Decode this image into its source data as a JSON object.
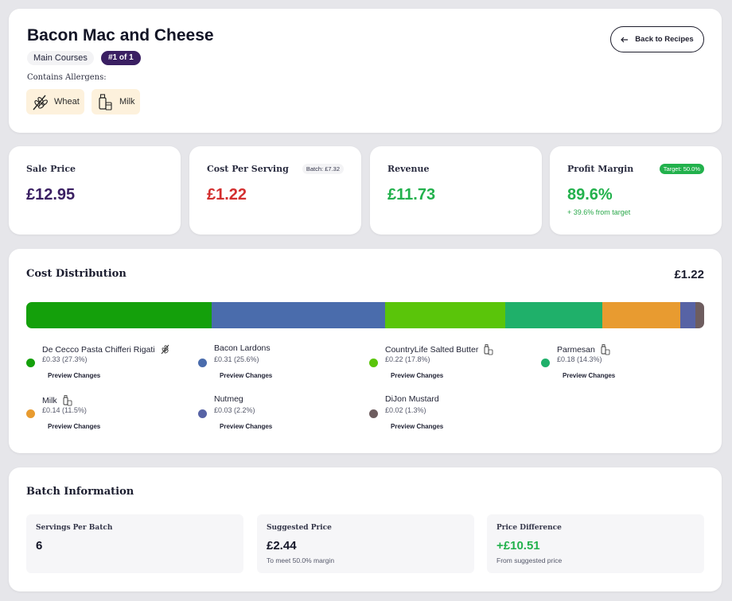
{
  "recipe": {
    "title": "Bacon Mac and Cheese",
    "category": "Main Courses",
    "rank": "#1 of 1",
    "allergens_label": "Contains Allergens:",
    "allergens": [
      {
        "name": "Wheat",
        "icon": "wheat-icon"
      },
      {
        "name": "Milk",
        "icon": "milk-icon"
      }
    ],
    "back_label": "Back to Recipes"
  },
  "kpis": {
    "sale_price": {
      "label": "Sale Price",
      "value": "£12.95",
      "color": "#3a1f62"
    },
    "cost_per_serving": {
      "label": "Cost Per Serving",
      "value": "£1.22",
      "badge": "Batch: £7.32",
      "color": "#d32f2f"
    },
    "revenue": {
      "label": "Revenue",
      "value": "£11.73",
      "color": "#22b14c"
    },
    "profit_margin": {
      "label": "Profit Margin",
      "value": "89.6%",
      "badge": "Target: 50.0%",
      "sub": "+ 39.6% from target",
      "color": "#22b14c"
    }
  },
  "distribution": {
    "title": "Cost Distribution",
    "total": "£1.22",
    "preview_label": "Preview Changes",
    "ingredients": [
      {
        "name": "De Cecco Pasta Chifferi Rigati",
        "amount": "£0.33 (27.3%)",
        "percent": 27.3,
        "color": "#14a00b",
        "allergen_icon": "wheat-icon"
      },
      {
        "name": "Bacon Lardons",
        "amount": "£0.31 (25.6%)",
        "percent": 25.6,
        "color": "#4a6cac",
        "allergen_icon": ""
      },
      {
        "name": "CountryLife Salted Butter",
        "amount": "£0.22 (17.8%)",
        "percent": 17.8,
        "color": "#5ac50a",
        "allergen_icon": "milk-icon"
      },
      {
        "name": "Parmesan",
        "amount": "£0.18 (14.3%)",
        "percent": 14.3,
        "color": "#1fb06a",
        "allergen_icon": "milk-icon"
      },
      {
        "name": "Milk",
        "amount": "£0.14 (11.5%)",
        "percent": 11.5,
        "color": "#e89b30",
        "allergen_icon": "milk-icon"
      },
      {
        "name": "Nutmeg",
        "amount": "£0.03 (2.2%)",
        "percent": 2.2,
        "color": "#5763a5",
        "allergen_icon": ""
      },
      {
        "name": "DiJon Mustard",
        "amount": "£0.02 (1.3%)",
        "percent": 1.3,
        "color": "#6e5d5f",
        "allergen_icon": ""
      }
    ]
  },
  "batch": {
    "title": "Batch Information",
    "servings": {
      "label": "Servings Per Batch",
      "value": "6"
    },
    "suggested": {
      "label": "Suggested Price",
      "value": "£2.44",
      "sub": "To meet 50.0% margin"
    },
    "difference": {
      "label": "Price Difference",
      "value": "+£10.51",
      "sub": "From suggested price",
      "color": "#22b14c"
    }
  }
}
